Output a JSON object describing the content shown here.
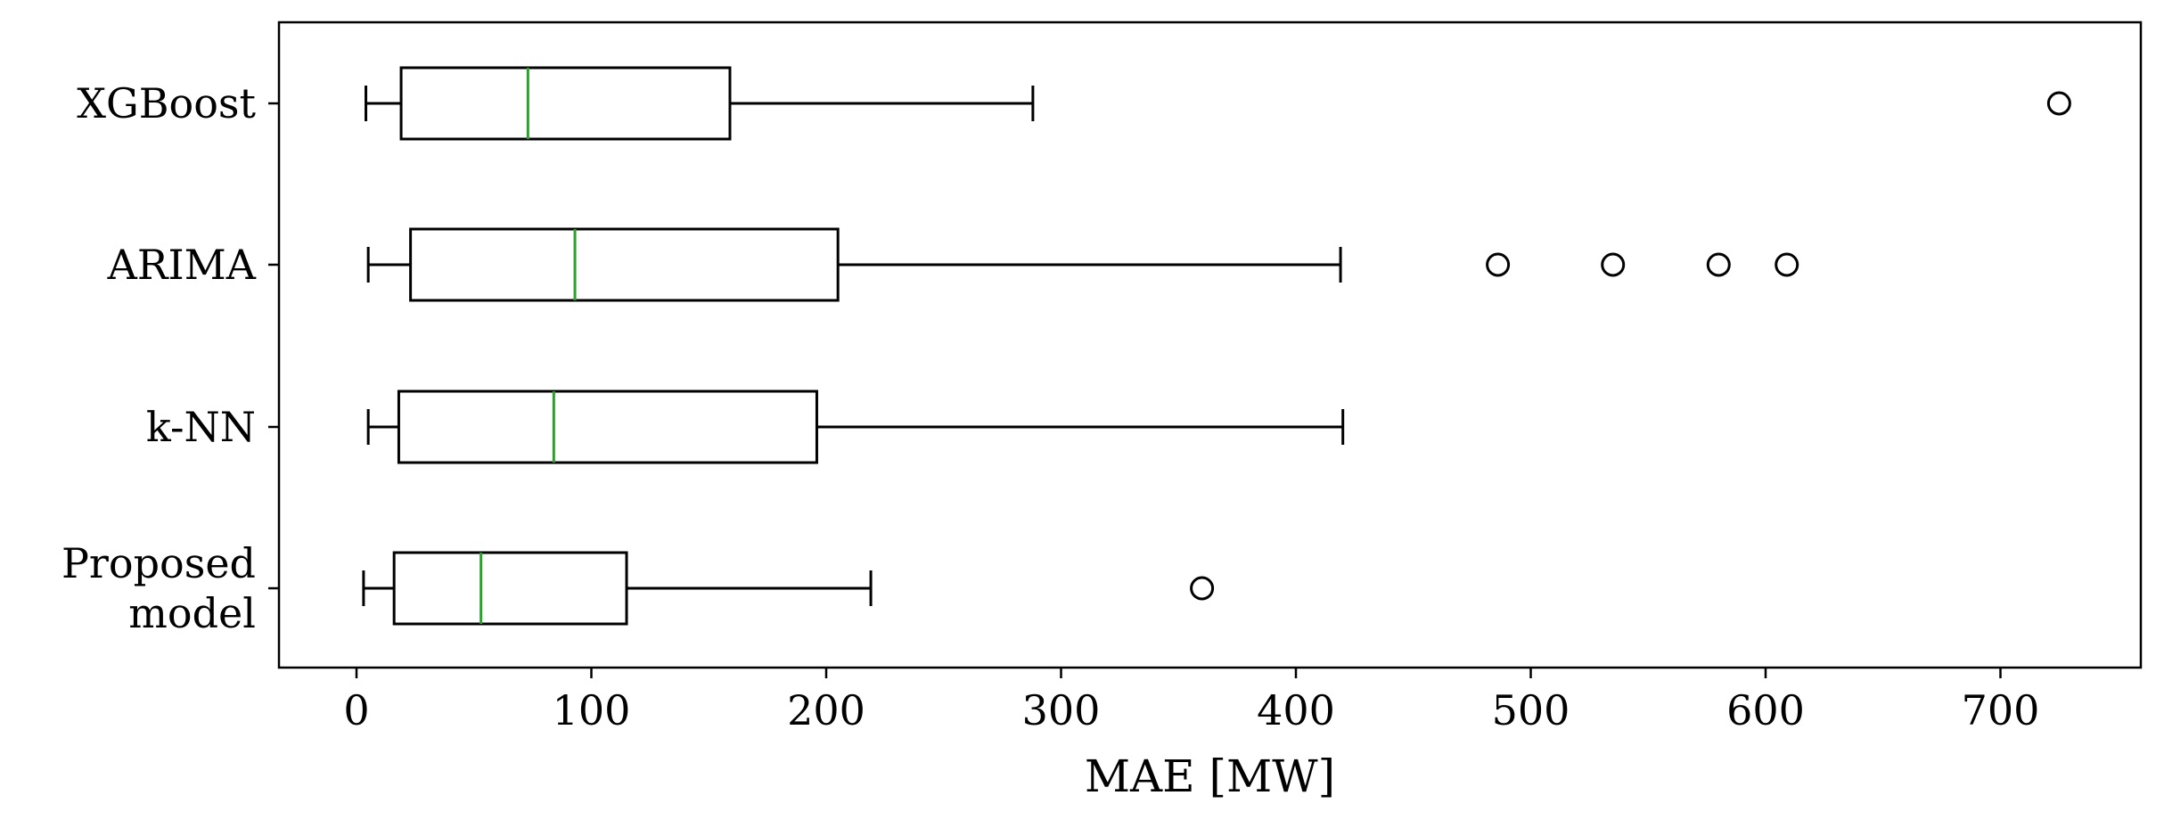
{
  "chart_data": {
    "type": "boxplot",
    "orientation": "horizontal",
    "title": "",
    "xlabel": "MAE [MW]",
    "ylabel": "",
    "xlim": [
      -33,
      760
    ],
    "x_ticks": [
      0,
      100,
      200,
      300,
      400,
      500,
      600,
      700
    ],
    "x_tick_labels": [
      "0",
      "100",
      "200",
      "300",
      "400",
      "500",
      "600",
      "700"
    ],
    "grid": false,
    "colors": {
      "box": "#000000",
      "median": "#2ca02c",
      "axis": "#000000"
    },
    "series": [
      {
        "name": "XGBoost",
        "label_lines": [
          "XGBoost"
        ],
        "whisker_low": 4,
        "q1": 19,
        "median": 73,
        "q3": 159,
        "whisker_high": 288,
        "outliers": [
          725
        ]
      },
      {
        "name": "ARIMA",
        "label_lines": [
          "ARIMA"
        ],
        "whisker_low": 5,
        "q1": 23,
        "median": 93,
        "q3": 205,
        "whisker_high": 419,
        "outliers": [
          486,
          535,
          580,
          609
        ]
      },
      {
        "name": "k-NN",
        "label_lines": [
          "k-NN"
        ],
        "whisker_low": 5,
        "q1": 18,
        "median": 84,
        "q3": 196,
        "whisker_high": 420,
        "outliers": []
      },
      {
        "name": "Proposed model",
        "label_lines": [
          "Proposed",
          "model"
        ],
        "whisker_low": 3,
        "q1": 16,
        "median": 53,
        "q3": 115,
        "whisker_high": 219,
        "outliers": [
          360
        ]
      }
    ]
  }
}
